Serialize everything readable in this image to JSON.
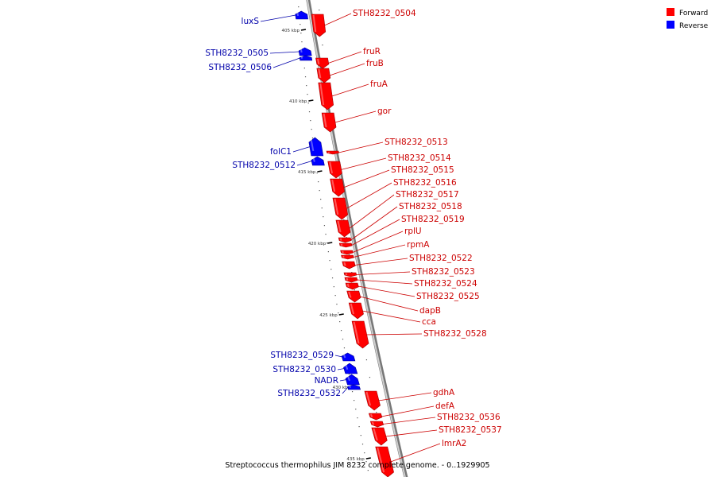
{
  "caption": "Streptococcus thermophilus JIM 8232 complete genome. - 0..1929905",
  "legend": [
    {
      "label": "Forward",
      "color": "#ff0000"
    },
    {
      "label": "Reverse",
      "color": "#0000ff"
    }
  ],
  "strand_colors": {
    "forward": "#ff0000",
    "reverse": "#0000ff",
    "forward_label": "#cc0000",
    "reverse_label": "#0000aa"
  },
  "ticks": [
    {
      "label": "405 kbp",
      "kbp": 405
    },
    {
      "label": "410 kbp",
      "kbp": 410
    },
    {
      "label": "415 kbp",
      "kbp": 415
    },
    {
      "label": "420 kbp",
      "kbp": 420
    },
    {
      "label": "425 kbp",
      "kbp": 425
    },
    {
      "label": "430 kbp",
      "kbp": 430
    },
    {
      "label": "435 kbp",
      "kbp": 435
    }
  ],
  "genes": [
    {
      "name": "luxS",
      "strand": "reverse"
    },
    {
      "name": "STH8232_0504",
      "strand": "forward"
    },
    {
      "name": "STH8232_0505",
      "strand": "reverse"
    },
    {
      "name": "STH8232_0506",
      "strand": "reverse"
    },
    {
      "name": "fruR",
      "strand": "forward"
    },
    {
      "name": "fruB",
      "strand": "forward"
    },
    {
      "name": "fruA",
      "strand": "forward"
    },
    {
      "name": "gor",
      "strand": "forward"
    },
    {
      "name": "folC1",
      "strand": "reverse"
    },
    {
      "name": "STH8232_0512",
      "strand": "reverse"
    },
    {
      "name": "STH8232_0513",
      "strand": "forward"
    },
    {
      "name": "STH8232_0514",
      "strand": "forward"
    },
    {
      "name": "STH8232_0515",
      "strand": "forward"
    },
    {
      "name": "STH8232_0516",
      "strand": "forward"
    },
    {
      "name": "STH8232_0517",
      "strand": "forward"
    },
    {
      "name": "STH8232_0518",
      "strand": "forward"
    },
    {
      "name": "STH8232_0519",
      "strand": "forward"
    },
    {
      "name": "rplU",
      "strand": "forward"
    },
    {
      "name": "rpmA",
      "strand": "forward"
    },
    {
      "name": "STH8232_0522",
      "strand": "forward"
    },
    {
      "name": "STH8232_0523",
      "strand": "forward"
    },
    {
      "name": "STH8232_0524",
      "strand": "forward"
    },
    {
      "name": "STH8232_0525",
      "strand": "forward"
    },
    {
      "name": "dapB",
      "strand": "forward"
    },
    {
      "name": "cca",
      "strand": "forward"
    },
    {
      "name": "STH8232_0528",
      "strand": "forward"
    },
    {
      "name": "STH8232_0529",
      "strand": "reverse"
    },
    {
      "name": "STH8232_0530",
      "strand": "reverse"
    },
    {
      "name": "NADR",
      "strand": "reverse"
    },
    {
      "name": "STH8232_0532",
      "strand": "reverse"
    },
    {
      "name": "gdhA",
      "strand": "forward"
    },
    {
      "name": "defA",
      "strand": "forward"
    },
    {
      "name": "STH8232_0536",
      "strand": "forward"
    },
    {
      "name": "STH8232_0537",
      "strand": "forward"
    },
    {
      "name": "lmrA2",
      "strand": "forward"
    }
  ]
}
